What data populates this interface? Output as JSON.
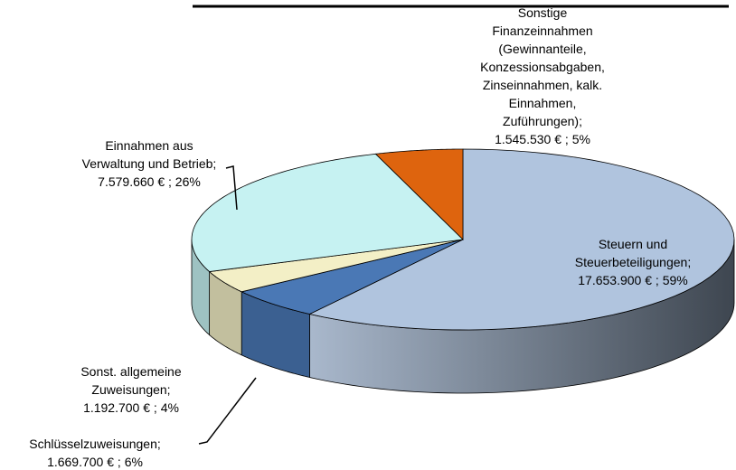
{
  "chart_data": {
    "type": "pie3d",
    "categories": [
      "Steuern und Steuerbeteiligungen;",
      "Schlüsselzuweisungen;",
      "Sonst. allgemeine Zuweisungen;",
      "Einnahmen aus Verwaltung und Betrieb;",
      "Sonstige Finanzeinnahmen (Gewinnanteile, Konzessionsabgaben, Zinseinnahmen, kalk. Einnahmen, Zuführungen);"
    ],
    "values": [
      17653900,
      1669700,
      1192700,
      7579660,
      1545530
    ],
    "value_labels": [
      "17.653.900 €",
      "1.669.700 €",
      "1.192.700 €",
      "7.579.660 €",
      "1.545.530 €"
    ],
    "separator": " ; ",
    "percents": [
      59,
      6,
      4,
      26,
      5
    ],
    "percent_labels": [
      "59%",
      "6%",
      "4%",
      "26%",
      "5%"
    ],
    "colors": [
      "#b0c4de",
      "#4a78b5",
      "#f3efc6",
      "#c6f2f2",
      "#de640e"
    ]
  }
}
